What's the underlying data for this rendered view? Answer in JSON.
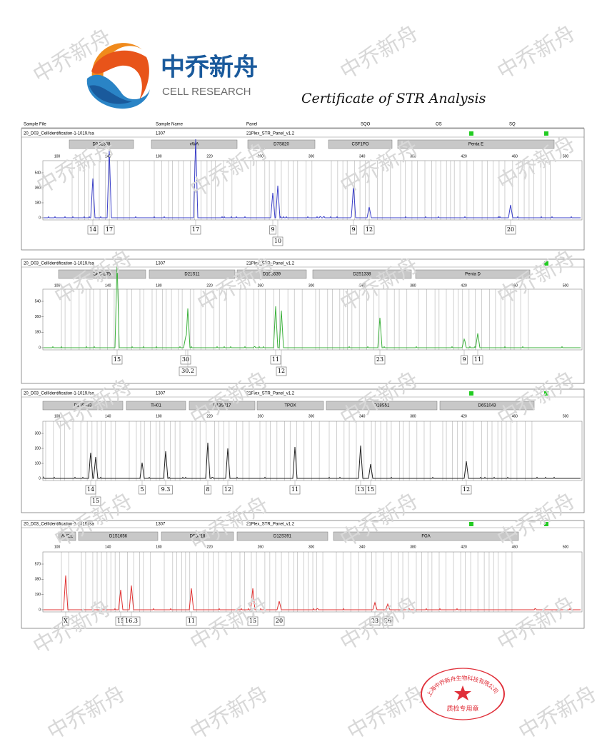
{
  "header": {
    "brand_cn": "中乔新舟",
    "brand_en": "CELL RESEARCH",
    "title": "Certificate of STR Analysis"
  },
  "table_header": [
    "Sample File",
    "Sample Name",
    "Panel",
    "SQO",
    "OS",
    "SQ"
  ],
  "x_ticks": [
    100,
    140,
    180,
    220,
    260,
    300,
    340,
    380,
    420,
    460,
    500
  ],
  "panels": [
    {
      "sample_file": "20_D03_CellIdentification-1-1019.fsa",
      "sample_name": "1307",
      "panel": "21Plex_STR_Panel_v1.2",
      "markers": [
        "D3S1358",
        "vWA",
        "D7S820",
        "CSF1PO",
        "Penta E"
      ],
      "y_ticks": [
        540,
        360,
        180,
        0
      ],
      "alleles": [
        "14",
        "17",
        "17",
        "9",
        "10",
        "9",
        "12",
        "20"
      ]
    },
    {
      "sample_file": "20_D03_CellIdentification-1-1019.fsa",
      "sample_name": "1307",
      "panel": "21Plex_STR_Panel_v1.2",
      "markers": [
        "D8S1179",
        "D21S11",
        "D16S539",
        "D2S1338",
        "Penta D"
      ],
      "y_ticks": [
        540,
        360,
        180,
        0
      ],
      "alleles": [
        "15",
        "30",
        "30.2",
        "11",
        "12",
        "23",
        "9",
        "11"
      ]
    },
    {
      "sample_file": "20_D03_CellIdentification-1-1019.fsa",
      "sample_name": "1307",
      "panel": "21Plex_STR_Panel_v1.2",
      "markers": [
        "D19S433",
        "TH01",
        "D13S317",
        "TPOX",
        "D18S51",
        "D6S1043"
      ],
      "y_ticks": [
        300,
        200,
        100,
        0
      ],
      "alleles": [
        "14",
        "15",
        "5",
        "9.3",
        "8",
        "12",
        "11",
        "13",
        "15",
        "12"
      ]
    },
    {
      "sample_file": "20_D03_CellIdentification-1-1019.fsa",
      "sample_name": "1307",
      "panel": "21Plex_STR_Panel_v1.2",
      "markers": [
        "AMEL",
        "D1S1656",
        "D5S818",
        "D12S391",
        "FGA"
      ],
      "y_ticks": [
        570,
        380,
        190,
        0
      ],
      "alleles": [
        "X",
        "15",
        "16.3",
        "11",
        "15",
        "20",
        "23",
        "26"
      ]
    }
  ],
  "watermark": "中乔新舟",
  "stamp": {
    "company": "上海中乔新舟生物科技有限公司",
    "purpose": "质检专用章"
  }
}
